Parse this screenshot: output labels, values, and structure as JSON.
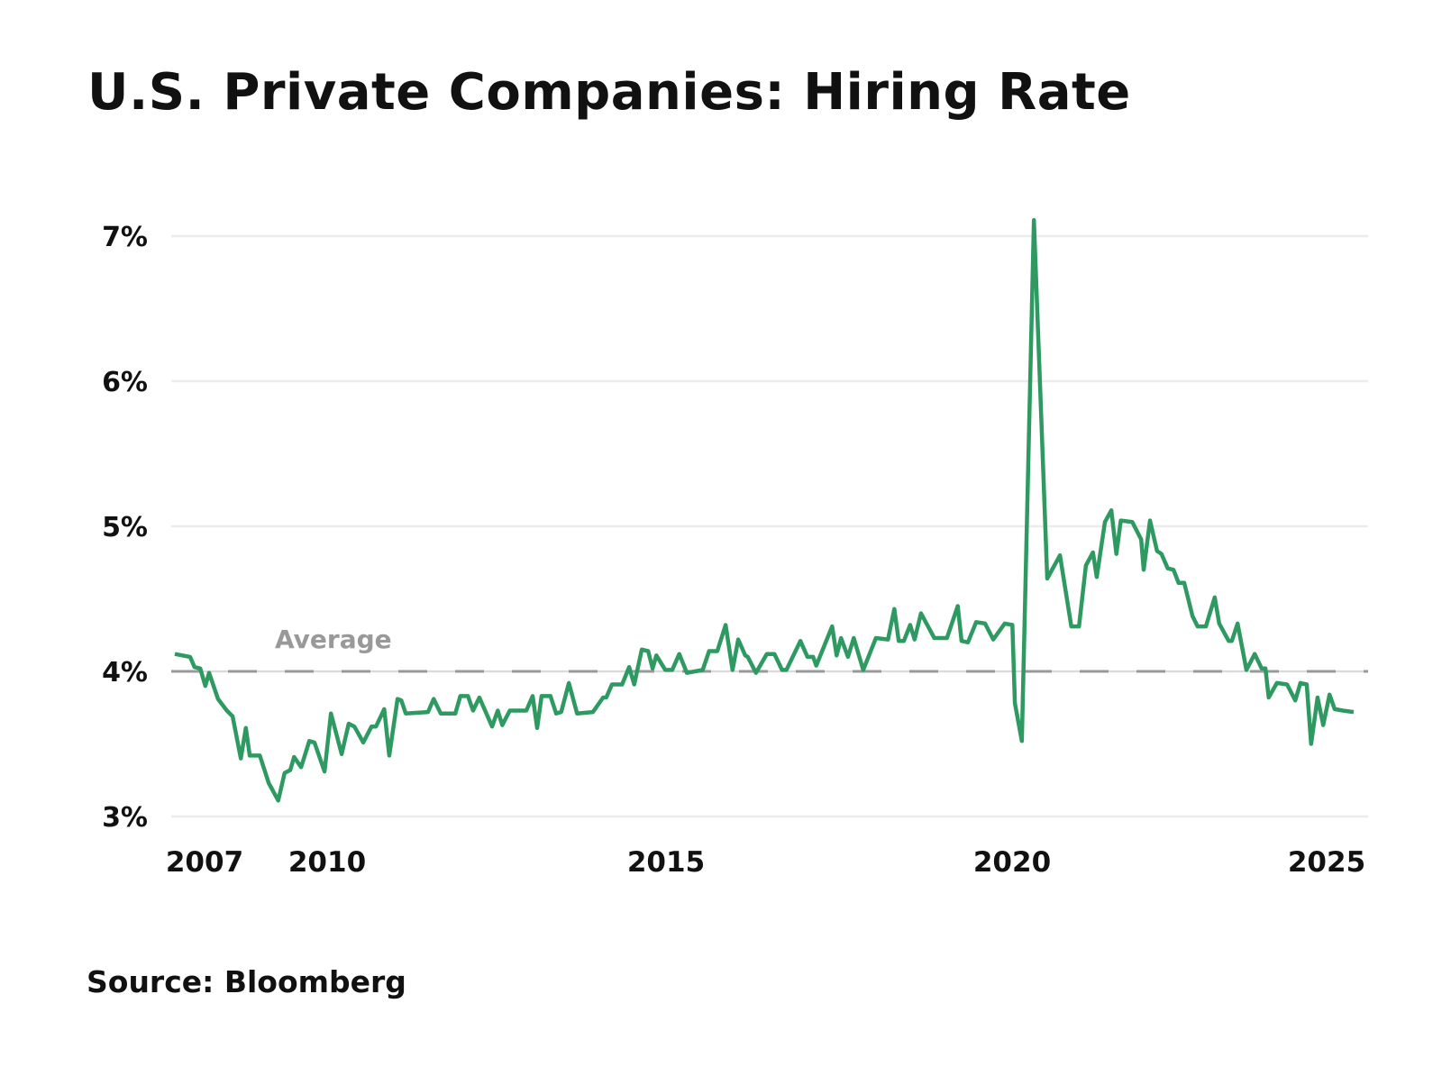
{
  "chart_data": {
    "type": "line",
    "title": "U.S. Private Companies: Hiring Rate",
    "source": "Source: Bloomberg",
    "xlabel": "",
    "ylabel": "",
    "ylim": [
      3,
      7
    ],
    "xlim": [
      2006.92,
      2025.5
    ],
    "grid": true,
    "y_ticks": [
      {
        "value": 3,
        "label": "3%"
      },
      {
        "value": 4,
        "label": "4%"
      },
      {
        "value": 5,
        "label": "5%"
      },
      {
        "value": 6,
        "label": "6%"
      },
      {
        "value": 7,
        "label": "7%"
      }
    ],
    "x_ticks": [
      {
        "value": 2007,
        "label": "2007"
      },
      {
        "value": 2010,
        "label": "2010"
      },
      {
        "value": 2015,
        "label": "2015"
      },
      {
        "value": 2020,
        "label": "2020"
      },
      {
        "value": 2025,
        "label": "2025"
      }
    ],
    "average": {
      "value": 4.0,
      "label": "Average",
      "color": "#999999"
    },
    "series": [
      {
        "name": "Hiring Rate",
        "color": "#2e9a62",
        "points": [
          [
            2006.92,
            4.12
          ],
          [
            2007.16,
            4.1
          ],
          [
            2007.23,
            4.03
          ],
          [
            2007.32,
            4.02
          ],
          [
            2007.4,
            3.9
          ],
          [
            2007.46,
            3.99
          ],
          [
            2007.6,
            3.81
          ],
          [
            2007.74,
            3.73
          ],
          [
            2007.83,
            3.69
          ],
          [
            2007.96,
            3.4
          ],
          [
            2008.04,
            3.61
          ],
          [
            2008.1,
            3.42
          ],
          [
            2008.26,
            3.42
          ],
          [
            2008.4,
            3.23
          ],
          [
            2008.55,
            3.11
          ],
          [
            2008.65,
            3.3
          ],
          [
            2008.74,
            3.32
          ],
          [
            2008.8,
            3.41
          ],
          [
            2008.91,
            3.34
          ],
          [
            2009.04,
            3.52
          ],
          [
            2009.12,
            3.51
          ],
          [
            2009.28,
            3.31
          ],
          [
            2009.38,
            3.71
          ],
          [
            2009.55,
            3.43
          ],
          [
            2009.66,
            3.64
          ],
          [
            2009.75,
            3.62
          ],
          [
            2009.89,
            3.51
          ],
          [
            2010.02,
            3.62
          ],
          [
            2010.09,
            3.62
          ],
          [
            2010.22,
            3.74
          ],
          [
            2010.3,
            3.42
          ],
          [
            2010.43,
            3.81
          ],
          [
            2010.49,
            3.8
          ],
          [
            2010.56,
            3.71
          ],
          [
            2010.91,
            3.72
          ],
          [
            2011.0,
            3.81
          ],
          [
            2011.11,
            3.71
          ],
          [
            2011.34,
            3.71
          ],
          [
            2011.42,
            3.83
          ],
          [
            2011.54,
            3.83
          ],
          [
            2011.62,
            3.73
          ],
          [
            2011.72,
            3.82
          ],
          [
            2011.92,
            3.62
          ],
          [
            2012.01,
            3.73
          ],
          [
            2012.08,
            3.63
          ],
          [
            2012.2,
            3.73
          ],
          [
            2012.46,
            3.73
          ],
          [
            2012.56,
            3.83
          ],
          [
            2012.63,
            3.61
          ],
          [
            2012.7,
            3.83
          ],
          [
            2012.84,
            3.83
          ],
          [
            2012.93,
            3.71
          ],
          [
            2013.01,
            3.72
          ],
          [
            2013.13,
            3.92
          ],
          [
            2013.26,
            3.71
          ],
          [
            2013.51,
            3.72
          ],
          [
            2013.67,
            3.82
          ],
          [
            2013.72,
            3.82
          ],
          [
            2013.81,
            3.91
          ],
          [
            2013.97,
            3.91
          ],
          [
            2014.08,
            4.03
          ],
          [
            2014.16,
            3.91
          ],
          [
            2014.28,
            4.15
          ],
          [
            2014.38,
            4.14
          ],
          [
            2014.45,
            4.02
          ],
          [
            2014.51,
            4.11
          ],
          [
            2014.65,
            4.01
          ],
          [
            2014.76,
            4.01
          ],
          [
            2014.87,
            4.12
          ],
          [
            2014.99,
            3.99
          ],
          [
            2015.24,
            4.01
          ],
          [
            2015.34,
            4.14
          ],
          [
            2015.47,
            4.14
          ],
          [
            2015.6,
            4.32
          ],
          [
            2015.71,
            4.01
          ],
          [
            2015.8,
            4.22
          ],
          [
            2015.91,
            4.11
          ],
          [
            2015.95,
            4.1
          ],
          [
            2016.08,
            3.99
          ],
          [
            2016.25,
            4.12
          ],
          [
            2016.37,
            4.12
          ],
          [
            2016.49,
            4.01
          ],
          [
            2016.56,
            4.01
          ],
          [
            2016.78,
            4.21
          ],
          [
            2016.89,
            4.1
          ],
          [
            2016.98,
            4.1
          ],
          [
            2017.03,
            4.04
          ],
          [
            2017.28,
            4.31
          ],
          [
            2017.35,
            4.11
          ],
          [
            2017.42,
            4.23
          ],
          [
            2017.53,
            4.1
          ],
          [
            2017.62,
            4.23
          ],
          [
            2017.77,
            4.01
          ],
          [
            2017.97,
            4.23
          ],
          [
            2018.16,
            4.22
          ],
          [
            2018.26,
            4.43
          ],
          [
            2018.33,
            4.21
          ],
          [
            2018.41,
            4.21
          ],
          [
            2018.51,
            4.32
          ],
          [
            2018.58,
            4.22
          ],
          [
            2018.68,
            4.4
          ],
          [
            2018.89,
            4.23
          ],
          [
            2019.09,
            4.23
          ],
          [
            2019.26,
            4.45
          ],
          [
            2019.32,
            4.21
          ],
          [
            2019.42,
            4.2
          ],
          [
            2019.55,
            4.34
          ],
          [
            2019.69,
            4.33
          ],
          [
            2019.82,
            4.22
          ],
          [
            2020.0,
            4.33
          ],
          [
            2020.12,
            4.32
          ],
          [
            2020.16,
            3.78
          ],
          [
            2020.27,
            3.52
          ],
          [
            2020.46,
            7.11
          ],
          [
            2020.67,
            4.64
          ],
          [
            2020.87,
            4.8
          ],
          [
            2021.05,
            4.31
          ],
          [
            2021.17,
            4.31
          ],
          [
            2021.28,
            4.73
          ],
          [
            2021.39,
            4.82
          ],
          [
            2021.45,
            4.65
          ],
          [
            2021.58,
            5.03
          ],
          [
            2021.68,
            5.11
          ],
          [
            2021.76,
            4.81
          ],
          [
            2021.83,
            5.04
          ],
          [
            2022.01,
            5.03
          ],
          [
            2022.15,
            4.91
          ],
          [
            2022.19,
            4.7
          ],
          [
            2022.29,
            5.04
          ],
          [
            2022.4,
            4.83
          ],
          [
            2022.47,
            4.81
          ],
          [
            2022.57,
            4.71
          ],
          [
            2022.66,
            4.7
          ],
          [
            2022.74,
            4.61
          ],
          [
            2022.83,
            4.61
          ],
          [
            2022.96,
            4.38
          ],
          [
            2023.04,
            4.31
          ],
          [
            2023.17,
            4.31
          ],
          [
            2023.31,
            4.51
          ],
          [
            2023.38,
            4.33
          ],
          [
            2023.53,
            4.21
          ],
          [
            2023.58,
            4.21
          ],
          [
            2023.67,
            4.33
          ],
          [
            2023.81,
            4.01
          ],
          [
            2023.94,
            4.12
          ],
          [
            2024.05,
            4.02
          ],
          [
            2024.11,
            4.02
          ],
          [
            2024.16,
            3.82
          ],
          [
            2024.29,
            3.92
          ],
          [
            2024.45,
            3.91
          ],
          [
            2024.58,
            3.8
          ],
          [
            2024.66,
            3.92
          ],
          [
            2024.76,
            3.91
          ],
          [
            2024.83,
            3.5
          ],
          [
            2024.93,
            3.82
          ],
          [
            2025.02,
            3.63
          ],
          [
            2025.12,
            3.84
          ],
          [
            2025.2,
            3.74
          ],
          [
            2025.33,
            3.73
          ],
          [
            2025.5,
            3.72
          ]
        ]
      }
    ]
  }
}
